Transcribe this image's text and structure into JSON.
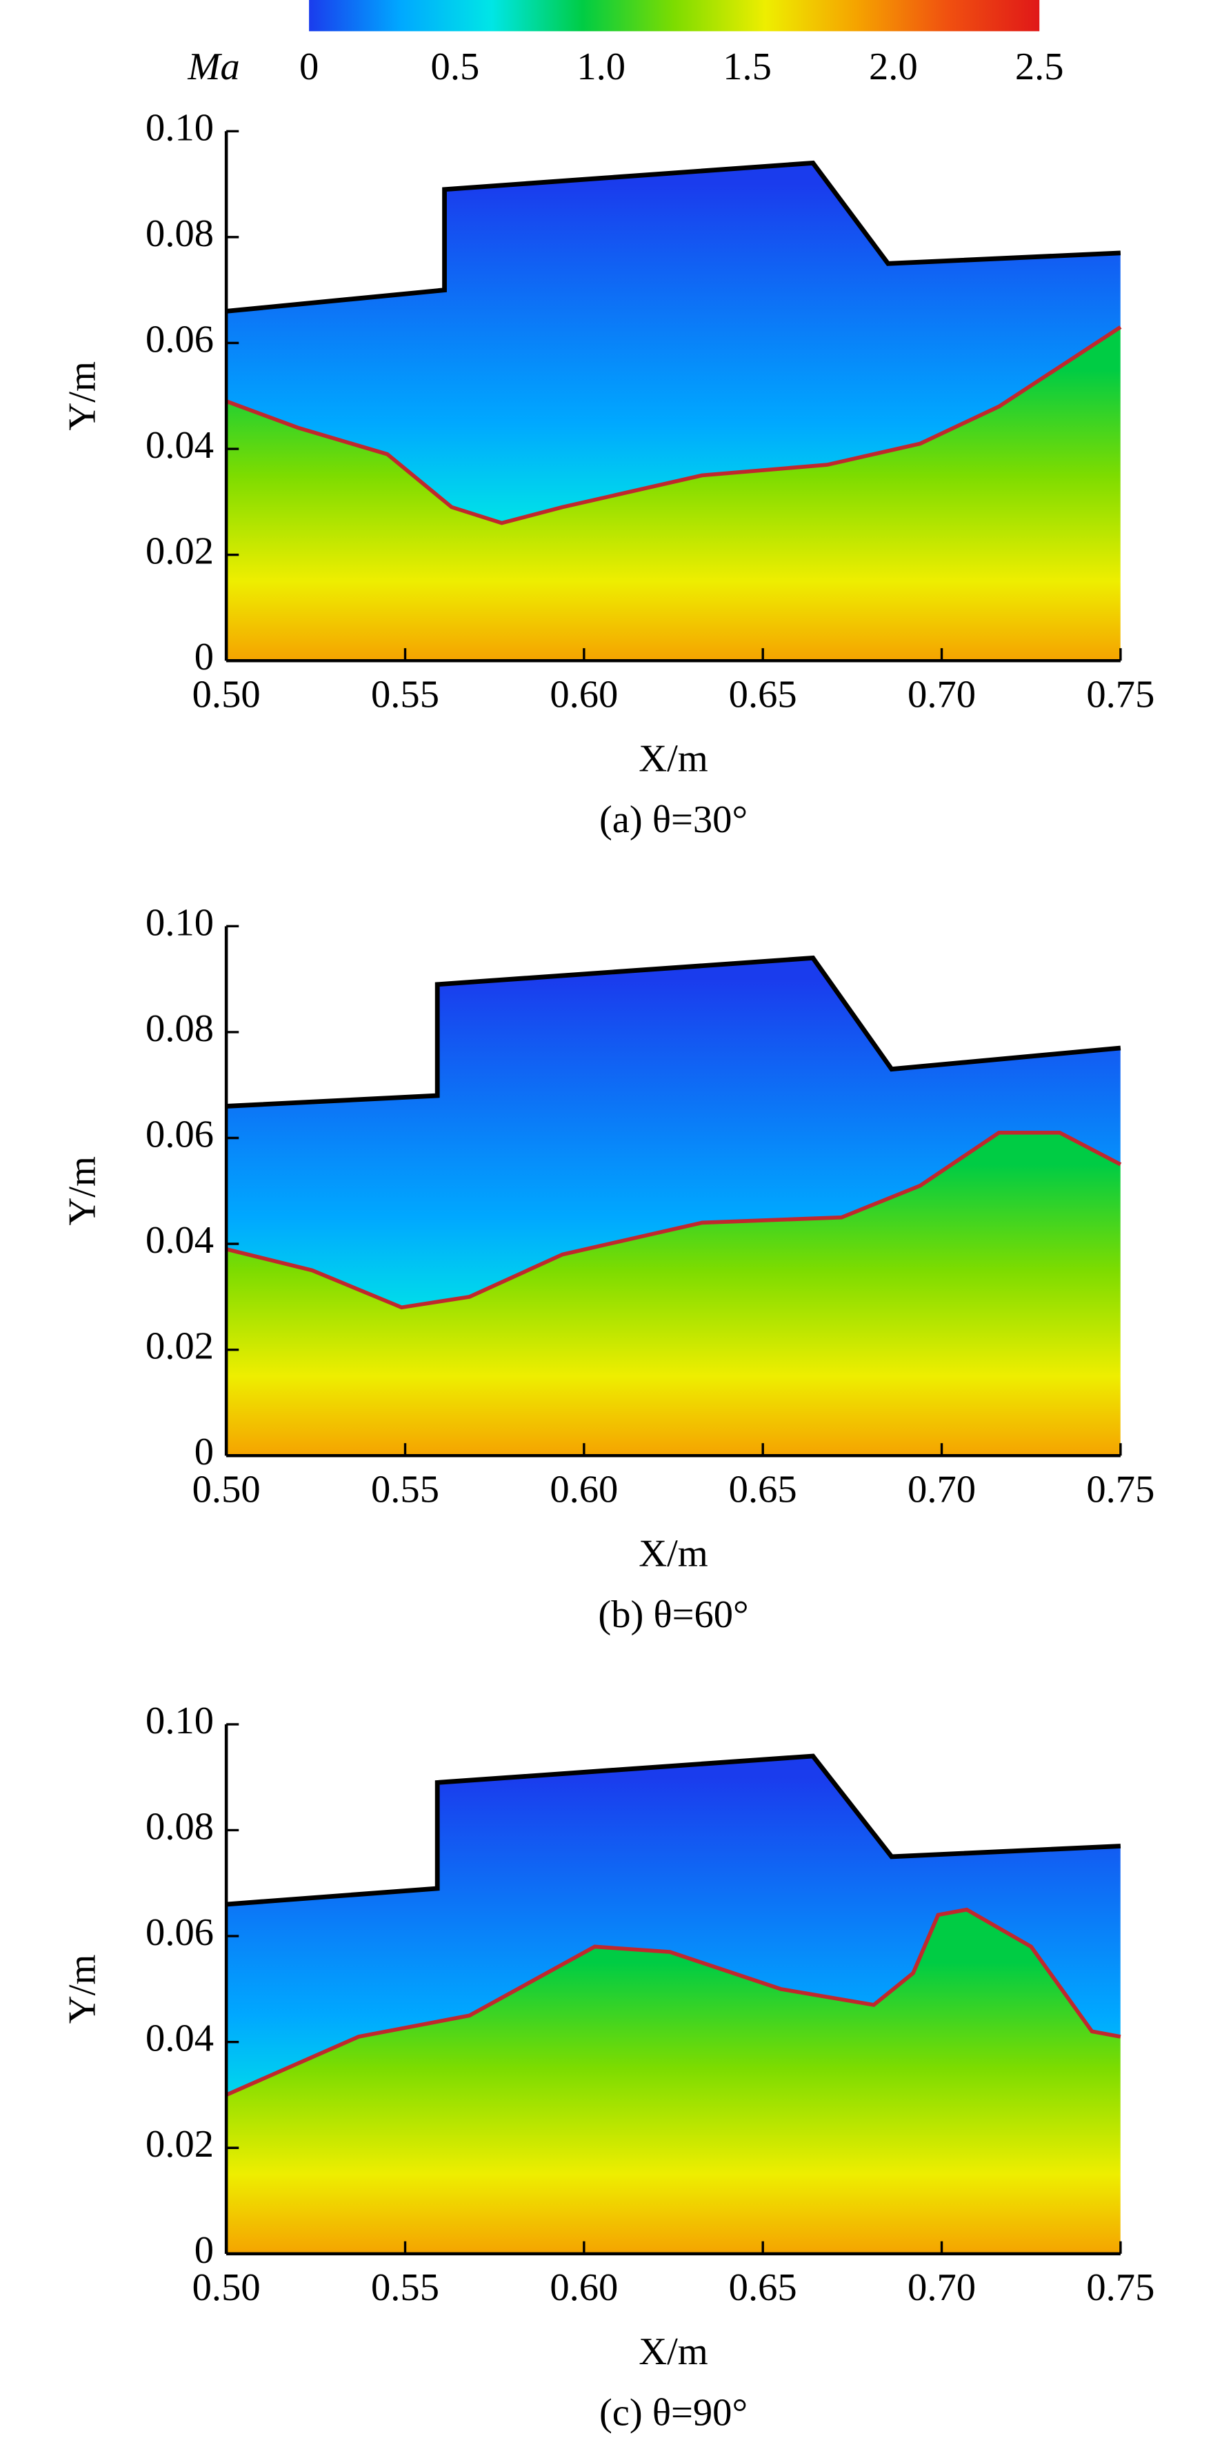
{
  "colorbar": {
    "label": "Ma",
    "lim": [
      0,
      2.5
    ],
    "ticks": [
      0,
      0.5,
      {
        "value": 1,
        "label": "1.0"
      },
      1.5,
      {
        "value": 2,
        "label": "2.0"
      },
      2.5
    ],
    "colors": [
      "#1a3ced",
      "#00a8ff",
      "#00e6e6",
      "#00cc44",
      "#7ddc00",
      "#eeee00",
      "#f5a300",
      "#f05010",
      "#e01818"
    ]
  },
  "chart_data": [
    {
      "type": "contour",
      "caption": "(a) θ=30°",
      "xlabel": "X/m",
      "ylabel": "Y/m",
      "xlim": [
        0.5,
        0.75
      ],
      "ylim": [
        0,
        0.1
      ],
      "xticks": [
        {
          "value": 0.5,
          "label": "0.50"
        },
        0.55,
        {
          "value": 0.6,
          "label": "0.60"
        },
        0.65,
        {
          "value": 0.7,
          "label": "0.70"
        },
        0.75
      ],
      "yticks": [
        0,
        0.02,
        0.04,
        0.06,
        0.08,
        {
          "value": 0.1,
          "label": "0.10"
        }
      ],
      "series": [
        {
          "color": "#000000",
          "x": [
            0.5,
            0.561,
            0.561,
            0.664,
            0.685,
            0.75
          ],
          "values": [
            0.066,
            0.07,
            0.089,
            0.094,
            0.075,
            0.077
          ]
        },
        {
          "color": "#c0282d",
          "x": [
            0.5,
            0.52,
            0.545,
            0.563,
            0.577,
            0.594,
            0.633,
            0.668,
            0.694,
            0.716,
            0.75
          ],
          "values": [
            0.049,
            0.044,
            0.039,
            0.029,
            0.026,
            0.029,
            0.035,
            0.037,
            0.041,
            0.048,
            0.063
          ]
        }
      ]
    },
    {
      "type": "contour",
      "caption": "(b) θ=60°",
      "xlabel": "X/m",
      "ylabel": "Y/m",
      "xlim": [
        0.5,
        0.75
      ],
      "ylim": [
        0,
        0.1
      ],
      "xticks": [
        {
          "value": 0.5,
          "label": "0.50"
        },
        0.55,
        {
          "value": 0.6,
          "label": "0.60"
        },
        0.65,
        {
          "value": 0.7,
          "label": "0.70"
        },
        0.75
      ],
      "yticks": [
        0,
        0.02,
        0.04,
        0.06,
        0.08,
        {
          "value": 0.1,
          "label": "0.10"
        }
      ],
      "series": [
        {
          "color": "#000000",
          "x": [
            0.5,
            0.559,
            0.559,
            0.664,
            0.686,
            0.75
          ],
          "values": [
            0.066,
            0.068,
            0.089,
            0.094,
            0.073,
            0.077
          ]
        },
        {
          "color": "#c0282d",
          "x": [
            0.5,
            0.524,
            0.549,
            0.568,
            0.594,
            0.633,
            0.672,
            0.694,
            0.716,
            0.733,
            0.75
          ],
          "values": [
            0.039,
            0.035,
            0.028,
            0.03,
            0.038,
            0.044,
            0.045,
            0.051,
            0.061,
            0.061,
            0.055
          ]
        }
      ]
    },
    {
      "type": "contour",
      "caption": "(c) θ=90°",
      "xlabel": "X/m",
      "ylabel": "Y/m",
      "xlim": [
        0.5,
        0.75
      ],
      "ylim": [
        0,
        0.1
      ],
      "xticks": [
        {
          "value": 0.5,
          "label": "0.50"
        },
        0.55,
        {
          "value": 0.6,
          "label": "0.60"
        },
        0.65,
        {
          "value": 0.7,
          "label": "0.70"
        },
        0.75
      ],
      "yticks": [
        0,
        0.02,
        0.04,
        0.06,
        0.08,
        {
          "value": 0.1,
          "label": "0.10"
        }
      ],
      "series": [
        {
          "color": "#000000",
          "x": [
            0.5,
            0.559,
            0.559,
            0.664,
            0.686,
            0.75
          ],
          "values": [
            0.066,
            0.069,
            0.089,
            0.094,
            0.075,
            0.077
          ]
        },
        {
          "color": "#c0282d",
          "x": [
            0.5,
            0.537,
            0.568,
            0.603,
            0.624,
            0.655,
            0.681,
            0.692,
            0.699,
            0.707,
            0.725,
            0.742,
            0.75
          ],
          "values": [
            0.03,
            0.041,
            0.045,
            0.058,
            0.057,
            0.05,
            0.047,
            0.053,
            0.064,
            0.065,
            0.058,
            0.042,
            0.041
          ]
        }
      ]
    }
  ]
}
